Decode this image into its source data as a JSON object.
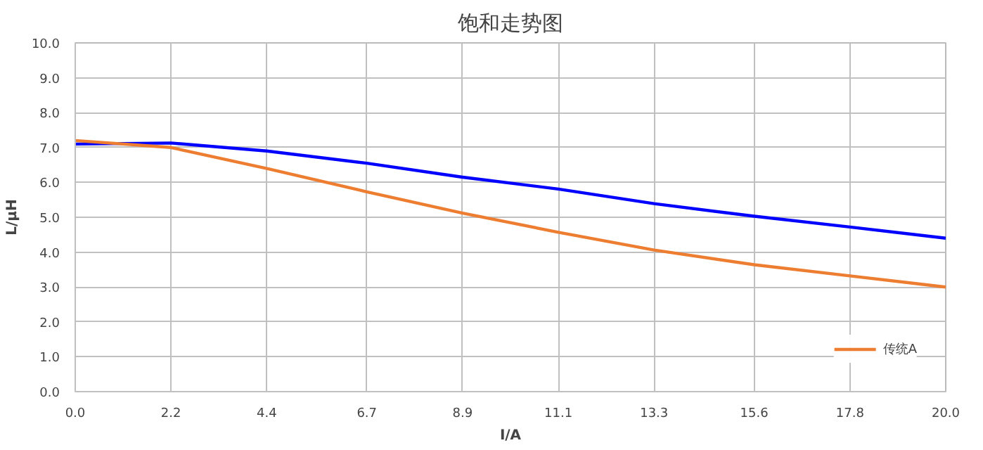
{
  "chart_data": {
    "type": "line",
    "title": "饱和走势图",
    "xlabel": "I/A",
    "ylabel": "L/μH",
    "x": [
      0.0,
      2.2,
      4.4,
      6.7,
      8.9,
      11.1,
      13.3,
      15.6,
      17.8,
      20.0
    ],
    "series": [
      {
        "color": "#0000ff",
        "values": [
          7.1,
          7.13,
          6.9,
          6.55,
          6.15,
          5.81,
          5.39,
          5.03,
          4.72,
          4.4
        ]
      },
      {
        "name": "传统A",
        "color": "#ed7d31",
        "values": [
          7.2,
          7.0,
          6.4,
          5.73,
          5.12,
          4.57,
          4.06,
          3.64,
          3.32,
          3.0
        ]
      }
    ],
    "xlim": [
      0,
      20
    ],
    "xticks": [
      {
        "value": 0,
        "label": "0.0"
      },
      2.2,
      4.4,
      6.7,
      8.9,
      11.1,
      13.3,
      15.6,
      17.8,
      {
        "value": 20,
        "label": "20.0"
      }
    ],
    "ylim": [
      0,
      10
    ],
    "yticks": [
      {
        "value": 0,
        "label": "0.0"
      },
      {
        "value": 1,
        "label": "1.0"
      },
      {
        "value": 2,
        "label": "2.0"
      },
      {
        "value": 3,
        "label": "3.0"
      },
      {
        "value": 4,
        "label": "4.0"
      },
      {
        "value": 5,
        "label": "5.0"
      },
      {
        "value": 6,
        "label": "6.0"
      },
      {
        "value": 7,
        "label": "7.0"
      },
      {
        "value": 8,
        "label": "8.0"
      },
      {
        "value": 9,
        "label": "9.0"
      },
      {
        "value": 10,
        "label": "10.0"
      }
    ],
    "grid": true,
    "legend": "bottom right",
    "marker": "none",
    "line_style": "solid"
  }
}
